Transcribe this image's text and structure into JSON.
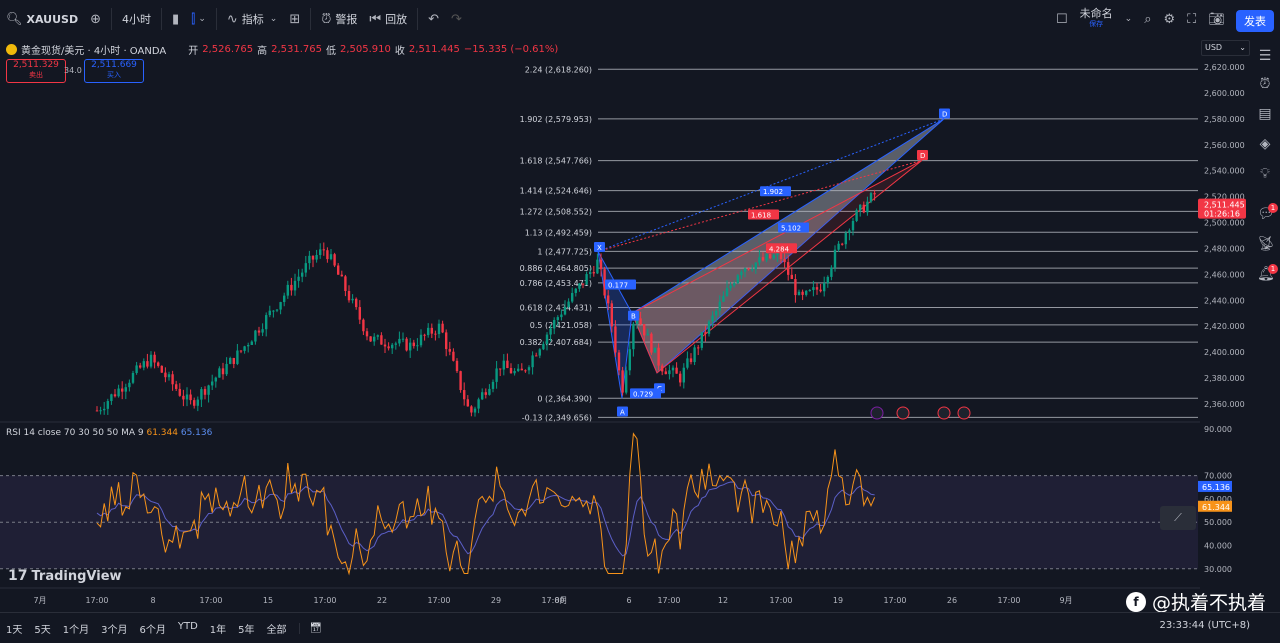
{
  "toolbar": {
    "symbol": "XAUUSD",
    "interval": "4小时",
    "indicators": "指标",
    "alert": "警报",
    "replay": "回放",
    "layout_name": "未命名",
    "layout_sub": "保存",
    "publish": "发表"
  },
  "legend": {
    "title": "黄金现货/美元 · 4小时 · OANDA",
    "open_label": "开",
    "open": "2,526.765",
    "high_label": "高",
    "high": "2,531.765",
    "low_label": "低",
    "low": "2,505.910",
    "close_label": "收",
    "close": "2,511.445",
    "change": "−15.335 (−0.61%)",
    "sell_price": "2,511.329",
    "sell_label": "卖出",
    "buy_price": "2,511.669",
    "buy_label": "买入",
    "spread": "34.0"
  },
  "currency": "USD",
  "fib_levels": [
    {
      "label": "2.24 (2,618.260)",
      "price": 2618.26
    },
    {
      "label": "1.902 (2,579.953)",
      "price": 2579.953
    },
    {
      "label": "1.618 (2,547.766)",
      "price": 2547.766
    },
    {
      "label": "1.414 (2,524.646)",
      "price": 2524.646
    },
    {
      "label": "1.272 (2,508.552)",
      "price": 2508.552
    },
    {
      "label": "1.13 (2,492.459)",
      "price": 2492.459
    },
    {
      "label": "1 (2,477.725)",
      "price": 2477.725
    },
    {
      "label": "0.886 (2,464.805)",
      "price": 2464.805
    },
    {
      "label": "0.786 (2,453.471)",
      "price": 2453.471
    },
    {
      "label": "0.618 (2,434.431)",
      "price": 2434.431
    },
    {
      "label": "0.5 (2,421.058)",
      "price": 2421.058
    },
    {
      "label": "0.382 (2,407.684)",
      "price": 2407.684
    },
    {
      "label": "0 (2,364.390)",
      "price": 2364.39
    },
    {
      "label": "-0.13 (2,349.656)",
      "price": 2349.656
    }
  ],
  "price_axis": [
    "2,620.000",
    "2,600.000",
    "2,580.000",
    "2,560.000",
    "2,540.000",
    "2,520.000",
    "2,500.000",
    "2,480.000",
    "2,460.000",
    "2,440.000",
    "2,420.000",
    "2,400.000",
    "2,380.000",
    "2,360.000"
  ],
  "current_price": "2,511.445",
  "countdown": "01:26:16",
  "pattern_points": {
    "X": "X",
    "A": "A",
    "B": "B",
    "C": "C",
    "D": "D",
    "D2": "D"
  },
  "pattern_ratios": {
    "xb": "0.177",
    "ac": "0.729",
    "bd": "1.902",
    "xd": "1.618",
    "cd1": "5.102",
    "cd2": "4.284"
  },
  "rsi": {
    "label": "RSI 14 close 70 30 50 50 MA 9",
    "value1": "61.344",
    "value2": "65.136",
    "axis": [
      "90.000",
      "70.000",
      "60.000",
      "50.000",
      "40.000",
      "30.000"
    ]
  },
  "time_axis": [
    "7月",
    "17:00",
    "8",
    "17:00",
    "15",
    "17:00",
    "22",
    "17:00",
    "29",
    "17:00",
    "8月",
    "6",
    "17:00",
    "12",
    "17:00",
    "19",
    "17:00",
    "26",
    "17:00",
    "9月"
  ],
  "ranges": [
    "1天",
    "5天",
    "1个月",
    "3个月",
    "6个月",
    "YTD",
    "1年",
    "5年",
    "全部"
  ],
  "clock": "23:33:44 (UTC+8)",
  "watermark": "TradingView",
  "social": "@执着不执着",
  "colors": {
    "up": "#089981",
    "down": "#f23645",
    "accent": "#2962ff",
    "rsi": "#f7931a",
    "rsi_ma": "#5b5fc7"
  }
}
